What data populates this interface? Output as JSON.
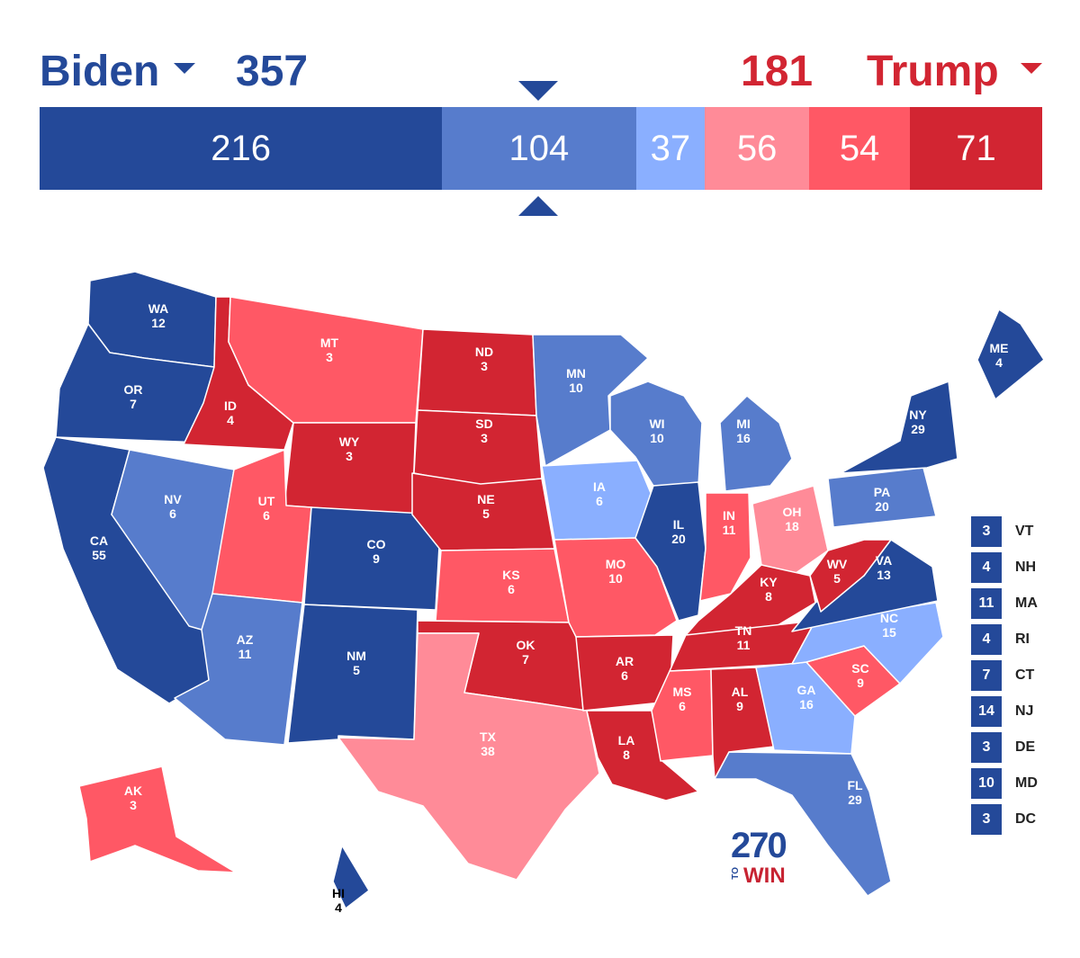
{
  "header": {
    "biden_name": "Biden",
    "biden_total": "357",
    "trump_total": "181",
    "trump_name": "Trump",
    "colors": {
      "biden": "#244999",
      "trump": "#d22532"
    }
  },
  "bar": {
    "segments": [
      {
        "label": "216",
        "value": 216,
        "color": "#244999"
      },
      {
        "label": "104",
        "value": 104,
        "color": "#577ccc"
      },
      {
        "label": "37",
        "value": 37,
        "color": "#8aafff"
      },
      {
        "label": "56",
        "value": 56,
        "color": "#ff8b98"
      },
      {
        "label": "54",
        "value": 54,
        "color": "#ff5865"
      },
      {
        "label": "71",
        "value": 71,
        "color": "#d22532"
      }
    ],
    "total": 538,
    "marker_value": 270
  },
  "states": [
    {
      "abbr": "WA",
      "ev": "12",
      "cat": "safe-d"
    },
    {
      "abbr": "OR",
      "ev": "7",
      "cat": "safe-d"
    },
    {
      "abbr": "CA",
      "ev": "55",
      "cat": "safe-d"
    },
    {
      "abbr": "NV",
      "ev": "6",
      "cat": "likely-d"
    },
    {
      "abbr": "ID",
      "ev": "4",
      "cat": "safe-r"
    },
    {
      "abbr": "MT",
      "ev": "3",
      "cat": "likely-r"
    },
    {
      "abbr": "WY",
      "ev": "3",
      "cat": "safe-r"
    },
    {
      "abbr": "UT",
      "ev": "6",
      "cat": "likely-r"
    },
    {
      "abbr": "AZ",
      "ev": "11",
      "cat": "likely-d"
    },
    {
      "abbr": "CO",
      "ev": "9",
      "cat": "safe-d"
    },
    {
      "abbr": "NM",
      "ev": "5",
      "cat": "safe-d"
    },
    {
      "abbr": "ND",
      "ev": "3",
      "cat": "safe-r"
    },
    {
      "abbr": "SD",
      "ev": "3",
      "cat": "safe-r"
    },
    {
      "abbr": "NE",
      "ev": "5",
      "cat": "safe-r"
    },
    {
      "abbr": "KS",
      "ev": "6",
      "cat": "likely-r"
    },
    {
      "abbr": "OK",
      "ev": "7",
      "cat": "safe-r"
    },
    {
      "abbr": "TX",
      "ev": "38",
      "cat": "lean-r"
    },
    {
      "abbr": "MN",
      "ev": "10",
      "cat": "likely-d"
    },
    {
      "abbr": "IA",
      "ev": "6",
      "cat": "lean-d"
    },
    {
      "abbr": "MO",
      "ev": "10",
      "cat": "likely-r"
    },
    {
      "abbr": "AR",
      "ev": "6",
      "cat": "safe-r"
    },
    {
      "abbr": "LA",
      "ev": "8",
      "cat": "safe-r"
    },
    {
      "abbr": "WI",
      "ev": "10",
      "cat": "likely-d"
    },
    {
      "abbr": "IL",
      "ev": "20",
      "cat": "safe-d"
    },
    {
      "abbr": "MI",
      "ev": "16",
      "cat": "likely-d"
    },
    {
      "abbr": "IN",
      "ev": "11",
      "cat": "likely-r"
    },
    {
      "abbr": "OH",
      "ev": "18",
      "cat": "lean-r"
    },
    {
      "abbr": "KY",
      "ev": "8",
      "cat": "safe-r"
    },
    {
      "abbr": "TN",
      "ev": "11",
      "cat": "safe-r"
    },
    {
      "abbr": "MS",
      "ev": "6",
      "cat": "likely-r"
    },
    {
      "abbr": "AL",
      "ev": "9",
      "cat": "safe-r"
    },
    {
      "abbr": "GA",
      "ev": "16",
      "cat": "lean-d"
    },
    {
      "abbr": "FL",
      "ev": "29",
      "cat": "likely-d"
    },
    {
      "abbr": "SC",
      "ev": "9",
      "cat": "likely-r"
    },
    {
      "abbr": "NC",
      "ev": "15",
      "cat": "lean-d"
    },
    {
      "abbr": "VA",
      "ev": "13",
      "cat": "safe-d"
    },
    {
      "abbr": "WV",
      "ev": "5",
      "cat": "safe-r"
    },
    {
      "abbr": "PA",
      "ev": "20",
      "cat": "likely-d"
    },
    {
      "abbr": "NY",
      "ev": "29",
      "cat": "safe-d"
    },
    {
      "abbr": "ME",
      "ev": "4",
      "cat": "safe-d"
    },
    {
      "abbr": "AK",
      "ev": "3",
      "cat": "likely-r"
    },
    {
      "abbr": "HI",
      "ev": "4",
      "cat": "safe-d"
    }
  ],
  "category_colors": {
    "safe-d": "#244999",
    "likely-d": "#577ccc",
    "lean-d": "#8aafff",
    "lean-r": "#ff8b98",
    "likely-r": "#ff5865",
    "safe-r": "#d22532"
  },
  "small_states": [
    {
      "ev": "3",
      "abbr": "VT"
    },
    {
      "ev": "4",
      "abbr": "NH"
    },
    {
      "ev": "11",
      "abbr": "MA"
    },
    {
      "ev": "4",
      "abbr": "RI"
    },
    {
      "ev": "7",
      "abbr": "CT"
    },
    {
      "ev": "14",
      "abbr": "NJ"
    },
    {
      "ev": "3",
      "abbr": "DE"
    },
    {
      "ev": "10",
      "abbr": "MD"
    },
    {
      "ev": "3",
      "abbr": "DC"
    }
  ],
  "logo": {
    "number": "270",
    "to": "TO",
    "win": "WIN"
  }
}
